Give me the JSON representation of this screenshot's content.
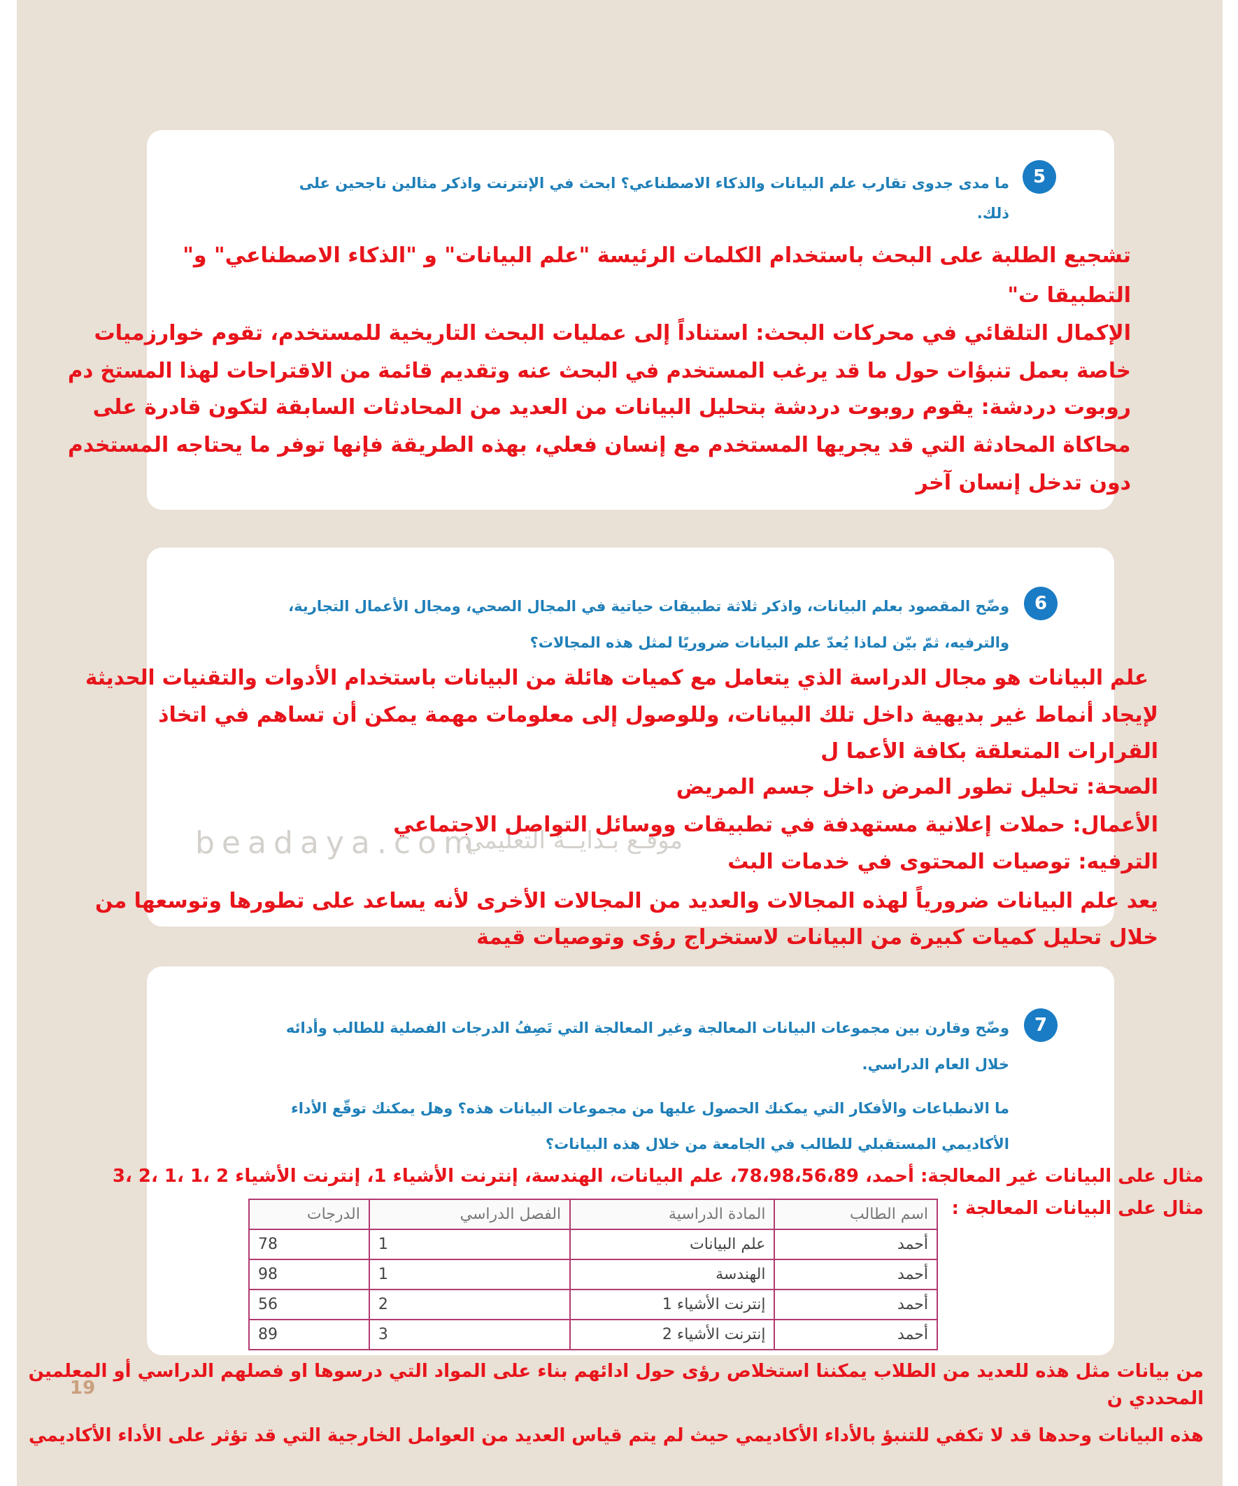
{
  "watermark": {
    "site": "beadaya.com",
    "name": "موقـع بـدايــة التعليمي"
  },
  "page_number": "19",
  "questions": [
    {
      "number": "5",
      "question": [
        "ما مدى جدوى تقارب علم البيانات والذكاء الاصطناعي؟ ابحث في الإنترنت واذكر مثالين ناجحين على",
        "ذلك."
      ],
      "answer": [
        "تشجيع الطلبة على البحث باستخدام الكلمات الرئيسة \"علم البيانات\" و \"الذكاء الاصطناعي\" و\"",
        "التطبيقا ت\"",
        "الإكمال التلقائي في محركات البحث: استناداً إلى عمليات البحث التاريخية للمستخدم، تقوم خوارزميات",
        "خاصة بعمل تنبؤات حول ما قد يرغب المستخدم في البحث عنه وتقديم قائمة من الاقتراحات لهذا المستخ دم",
        "روبوت دردشة: يقوم روبوت دردشة بتحليل البيانات من العديد من المحادثات السابقة لتكون قادرة على",
        "محاكاة المحادثة التي قد يجريها المستخدم مع إنسان فعلي، بهذه الطريقة فإنها توفر ما يحتاجه المستخدم",
        "دون تدخل إنسان آخر"
      ]
    },
    {
      "number": "6",
      "question": [
        "وضّح المقصود بعلم البيانات، واذكر ثلاثة تطبيقات حياتية في المجال الصحي، ومجال الأعمال التجارية،",
        "والترفيه، ثمّ بيّن لماذا يُعدّ علم البيانات ضروريًا لمثل هذه المجالات؟"
      ],
      "answer": [
        "علم البيانات هو مجال الدراسة الذي يتعامل مع كميات هائلة من البيانات باستخدام الأدوات والتقنيات الحديثة",
        "لإيجاد أنماط غير بديهية داخل تلك البيانات، وللوصول إلى معلومات مهمة يمكن أن تساهم في اتخاذ",
        "القرارات المتعلقة بكافة الأعما ل",
        "الصحة: تحليل تطور المرض داخل جسم المريض",
        "الأعمال: حملات إعلانية مستهدفة في تطبيقات ووسائل التواصل الاجتماعي",
        "الترفيه: توصيات المحتوى في خدمات البث",
        "يعد علم البيانات ضرورياً لهذه المجالات والعديد من المجالات الأخرى لأنه يساعد على تطورها وتوسعها من",
        "خلال تحليل كميات كبيرة من البيانات لاستخراج رؤى وتوصيات قيمة"
      ]
    },
    {
      "number": "7",
      "question": [
        "وضّح وقارن بين مجموعات البيانات المعالجة وغير المعالجة التي تَصِفُ الدرجات الفصلية للطالب وأدائه",
        "خلال العام الدراسي.",
        "ما الانطباعات والأفكار التي يمكنك الحصول عليها من مجموعات البيانات هذه؟ وهل يمكنك توقّع الأداء",
        "الأكاديمي المستقبلي للطالب في الجامعة من خلال هذه البيانات؟"
      ],
      "answer": [
        "مثال على البيانات غير المعالجة: أحمد، 78،98،56،89، علم البيانات، الهندسة، إنترنت الأشياء 1، إنترنت الأشياء 2 ،1 ،1 ،2 ،3",
        "مثال على البيانات المعالجة :"
      ],
      "table": {
        "header": [
          "اسم الطالب",
          "المادة الدراسية",
          "الفصل الدراسي",
          "الدرجات"
        ],
        "rows": [
          [
            "أحمد",
            "علم البيانات",
            1,
            78
          ],
          [
            "أحمد",
            "الهندسة",
            1,
            98
          ],
          [
            "أحمد",
            "إنترنت الأشياء 1",
            2,
            56
          ],
          [
            "أحمد",
            "إنترنت الأشياء 2",
            3,
            89
          ]
        ]
      },
      "conclusion": [
        "من بيانات مثل هذه للعديد من الطلاب يمكننا استخلاص رؤى حول ادائهم بناء على المواد التي درسوها او فصلهم الدراسي أو المعلمين",
        "المحددي ن",
        "هذه البيانات وحدها قد لا تكفي للتنبؤ بالأداء الأكاديمي حيث لم يتم قياس العديد من العوامل الخارجية التي قد تؤثر على الأداء الأكاديمي"
      ]
    }
  ]
}
